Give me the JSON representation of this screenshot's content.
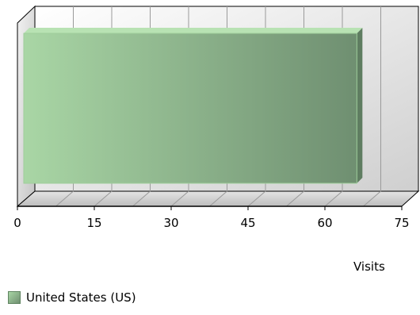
{
  "chart_data": {
    "type": "bar",
    "orientation": "horizontal",
    "three_d": true,
    "categories": [
      "United States (US)"
    ],
    "series": [
      {
        "name": "United States (US)",
        "values": [
          65
        ]
      }
    ],
    "xlabel": "Visits",
    "xlim": [
      0,
      75
    ],
    "xticks": [
      0,
      15,
      30,
      45,
      60,
      75
    ],
    "grid": true,
    "legend_position": "bottom-left",
    "colors": {
      "bar_light": "#a9d6a5",
      "bar_dark": "#6f8f71",
      "bar_top": "#b8e2b3",
      "bar_side": "#5f7d61",
      "wall_light": "#ffffff",
      "wall_dark": "#cfcfcf",
      "grid": "#9a9a9a",
      "axis": "#000000"
    }
  }
}
